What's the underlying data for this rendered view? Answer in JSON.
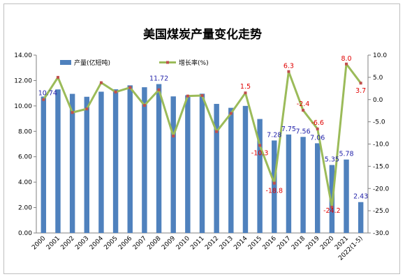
{
  "chart_data": {
    "type": "bar",
    "title": "美国煤炭产量变化走势",
    "categories": [
      "2000",
      "2001",
      "2002",
      "2003",
      "2004",
      "2005",
      "2006",
      "2007",
      "2008",
      "2009",
      "2010",
      "2011",
      "2012",
      "2013",
      "2014",
      "2015",
      "2016",
      "2017",
      "2018",
      "2019",
      "2020",
      "2021",
      "2022(1-5)"
    ],
    "series": [
      {
        "name": "产量(亿短吨)",
        "type": "bar",
        "axis": "left",
        "color": "#4f81bd",
        "values": [
          10.74,
          11.3,
          10.95,
          10.72,
          11.12,
          11.31,
          11.62,
          11.47,
          11.72,
          10.75,
          10.84,
          10.96,
          10.16,
          9.85,
          10.0,
          8.97,
          7.28,
          7.75,
          7.56,
          7.06,
          5.35,
          5.78,
          2.43
        ],
        "labels": {
          "0": "10.74",
          "8": "11.72",
          "16": "7.28",
          "17": "7.75",
          "18": "7.56",
          "19": "7.06",
          "20": "5.35",
          "21": "5.78",
          "22": "2.43"
        }
      },
      {
        "name": "增长率(%)",
        "type": "line",
        "axis": "right",
        "color": "#9bbb59",
        "marker_color": "#c0504d",
        "values": [
          0.0,
          5.0,
          -2.9,
          -2.1,
          3.8,
          1.7,
          2.7,
          -1.3,
          2.2,
          -8.2,
          0.8,
          0.9,
          -7.2,
          -3.1,
          1.5,
          -10.3,
          -18.8,
          6.3,
          -2.4,
          -6.6,
          -24.2,
          8.0,
          3.7
        ],
        "labels": {
          "14": "1.5",
          "15": "-10.3",
          "16": "-18.8",
          "17": "6.3",
          "18": "-2.4",
          "19": "-6.6",
          "20": "-24.2",
          "21": "8.0",
          "22": "3.7"
        }
      }
    ],
    "y_left": {
      "min": 0,
      "max": 14,
      "step": 2,
      "tick_labels": [
        "0.00",
        "2.00",
        "4.00",
        "6.00",
        "8.00",
        "10.00",
        "12.00",
        "14.00"
      ]
    },
    "y_right": {
      "min": -30,
      "max": 10,
      "step": 5,
      "tick_labels": [
        "-30.0",
        "-25.0",
        "-20.0",
        "-15.0",
        "-10.0",
        "-5.0",
        "0.0",
        "5.0",
        "10.0"
      ]
    },
    "grid": false,
    "legend_position": "top-left"
  }
}
